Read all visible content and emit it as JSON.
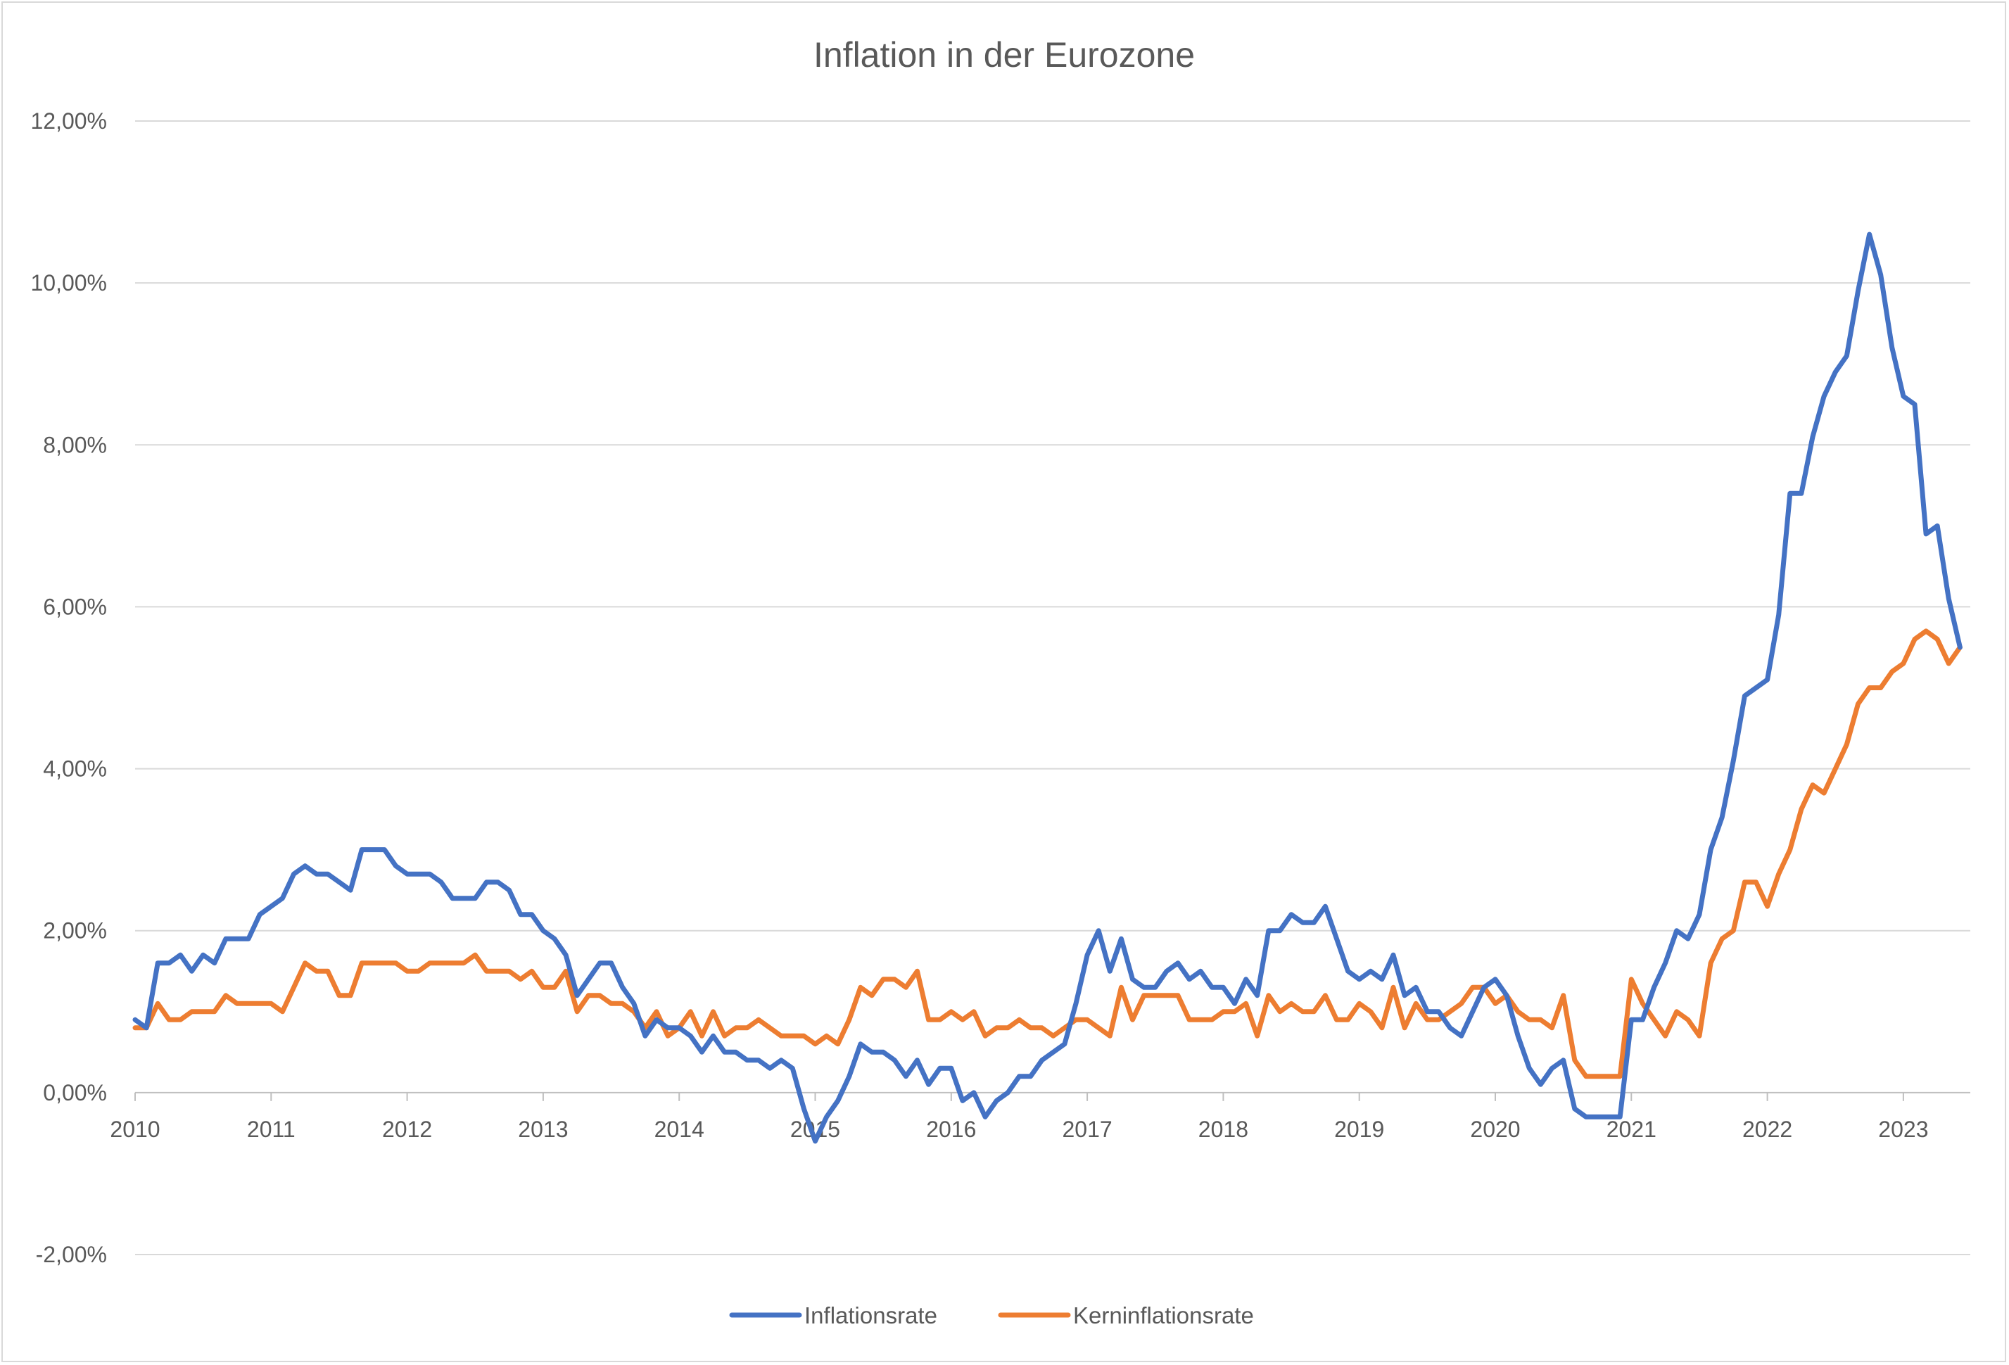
{
  "chart_data": {
    "type": "line",
    "title": "Inflation in der Eurozone",
    "xlabel": "",
    "ylabel": "",
    "ylim": [
      -0.02,
      0.12
    ],
    "y_ticks": [
      -0.02,
      0,
      0.02,
      0.04,
      0.06,
      0.08,
      0.1,
      0.12
    ],
    "y_tick_labels": [
      "-2,00%",
      "0,00%",
      "2,00%",
      "4,00%",
      "6,00%",
      "8,00%",
      "10,00%",
      "12,00%"
    ],
    "x_tick_labels": [
      "2010",
      "2011",
      "2012",
      "2013",
      "2014",
      "2015",
      "2016",
      "2017",
      "2018",
      "2019",
      "2020",
      "2021",
      "2022",
      "2023"
    ],
    "x_start": "2010-01",
    "x_frequency": "monthly",
    "grid": "horizontal",
    "legend_position": "bottom",
    "series": [
      {
        "name": "Inflationsrate",
        "color": "#4472c4",
        "values": [
          0.009,
          0.008,
          0.016,
          0.016,
          0.017,
          0.015,
          0.017,
          0.016,
          0.019,
          0.019,
          0.019,
          0.022,
          0.023,
          0.024,
          0.027,
          0.028,
          0.027,
          0.027,
          0.026,
          0.025,
          0.03,
          0.03,
          0.03,
          0.028,
          0.027,
          0.027,
          0.027,
          0.026,
          0.024,
          0.024,
          0.024,
          0.026,
          0.026,
          0.025,
          0.022,
          0.022,
          0.02,
          0.019,
          0.017,
          0.012,
          0.014,
          0.016,
          0.016,
          0.013,
          0.011,
          0.007,
          0.009,
          0.008,
          0.008,
          0.007,
          0.005,
          0.007,
          0.005,
          0.005,
          0.004,
          0.004,
          0.003,
          0.004,
          0.003,
          -0.002,
          -0.006,
          -0.003,
          -0.001,
          0.002,
          0.006,
          0.005,
          0.005,
          0.004,
          0.002,
          0.004,
          0.001,
          0.003,
          0.003,
          -0.001,
          0.0,
          -0.003,
          -0.001,
          0.0,
          0.002,
          0.002,
          0.004,
          0.005,
          0.006,
          0.011,
          0.017,
          0.02,
          0.015,
          0.019,
          0.014,
          0.013,
          0.013,
          0.015,
          0.016,
          0.014,
          0.015,
          0.013,
          0.013,
          0.011,
          0.014,
          0.012,
          0.02,
          0.02,
          0.022,
          0.021,
          0.021,
          0.023,
          0.019,
          0.015,
          0.014,
          0.015,
          0.014,
          0.017,
          0.012,
          0.013,
          0.01,
          0.01,
          0.008,
          0.007,
          0.01,
          0.013,
          0.014,
          0.012,
          0.007,
          0.003,
          0.001,
          0.003,
          0.004,
          -0.002,
          -0.003,
          -0.003,
          -0.003,
          -0.003,
          0.009,
          0.009,
          0.013,
          0.016,
          0.02,
          0.019,
          0.022,
          0.03,
          0.034,
          0.041,
          0.049,
          0.05,
          0.051,
          0.059,
          0.074,
          0.074,
          0.081,
          0.086,
          0.089,
          0.091,
          0.099,
          0.106,
          0.101,
          0.092,
          0.086,
          0.085,
          0.069,
          0.07,
          0.061,
          0.055
        ]
      },
      {
        "name": "Kerninflationsrate",
        "color": "#ed7d31",
        "values": [
          0.008,
          0.008,
          0.011,
          0.009,
          0.009,
          0.01,
          0.01,
          0.01,
          0.012,
          0.011,
          0.011,
          0.011,
          0.011,
          0.01,
          0.013,
          0.016,
          0.015,
          0.015,
          0.012,
          0.012,
          0.016,
          0.016,
          0.016,
          0.016,
          0.015,
          0.015,
          0.016,
          0.016,
          0.016,
          0.016,
          0.017,
          0.015,
          0.015,
          0.015,
          0.014,
          0.015,
          0.013,
          0.013,
          0.015,
          0.01,
          0.012,
          0.012,
          0.011,
          0.011,
          0.01,
          0.008,
          0.01,
          0.007,
          0.008,
          0.01,
          0.007,
          0.01,
          0.007,
          0.008,
          0.008,
          0.009,
          0.008,
          0.007,
          0.007,
          0.007,
          0.006,
          0.007,
          0.006,
          0.009,
          0.013,
          0.012,
          0.014,
          0.014,
          0.013,
          0.015,
          0.009,
          0.009,
          0.01,
          0.009,
          0.01,
          0.007,
          0.008,
          0.008,
          0.009,
          0.008,
          0.008,
          0.007,
          0.008,
          0.009,
          0.009,
          0.008,
          0.007,
          0.013,
          0.009,
          0.012,
          0.012,
          0.012,
          0.012,
          0.009,
          0.009,
          0.009,
          0.01,
          0.01,
          0.011,
          0.007,
          0.012,
          0.01,
          0.011,
          0.01,
          0.01,
          0.012,
          0.009,
          0.009,
          0.011,
          0.01,
          0.008,
          0.013,
          0.008,
          0.011,
          0.009,
          0.009,
          0.01,
          0.011,
          0.013,
          0.013,
          0.011,
          0.012,
          0.01,
          0.009,
          0.009,
          0.008,
          0.012,
          0.004,
          0.002,
          0.002,
          0.002,
          0.002,
          0.014,
          0.011,
          0.009,
          0.007,
          0.01,
          0.009,
          0.007,
          0.016,
          0.019,
          0.02,
          0.026,
          0.026,
          0.023,
          0.027,
          0.03,
          0.035,
          0.038,
          0.037,
          0.04,
          0.043,
          0.048,
          0.05,
          0.05,
          0.052,
          0.053,
          0.056,
          0.057,
          0.056,
          0.053,
          0.055
        ]
      }
    ]
  }
}
